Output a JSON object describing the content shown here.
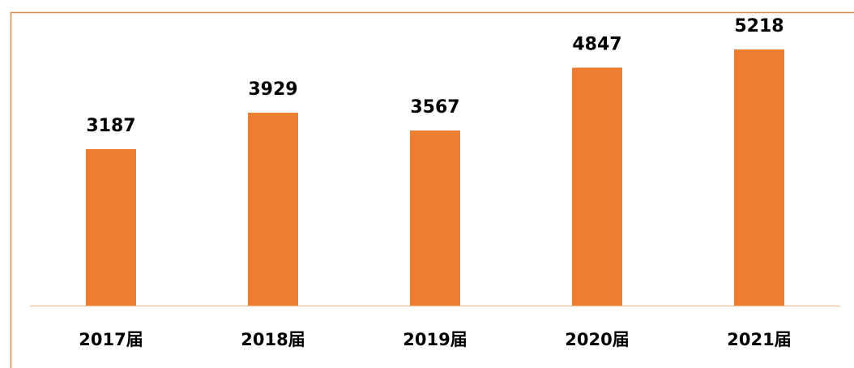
{
  "chart_data": {
    "type": "bar",
    "categories": [
      "2017届",
      "2018届",
      "2019届",
      "2020届",
      "2021届"
    ],
    "values": [
      3187,
      3929,
      3567,
      4847,
      5218
    ],
    "color": "#ed7d31"
  }
}
